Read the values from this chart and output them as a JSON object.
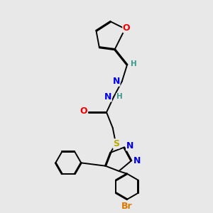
{
  "bg_color": "#e8e8e8",
  "atom_colors": {
    "C": "#000000",
    "H": "#3a9a8a",
    "N": "#0000ee",
    "O": "#ee0000",
    "S": "#bbaa00",
    "Br": "#dd7700"
  },
  "bond_color": "#000000",
  "figsize": [
    3.0,
    3.0
  ],
  "dpi": 100
}
